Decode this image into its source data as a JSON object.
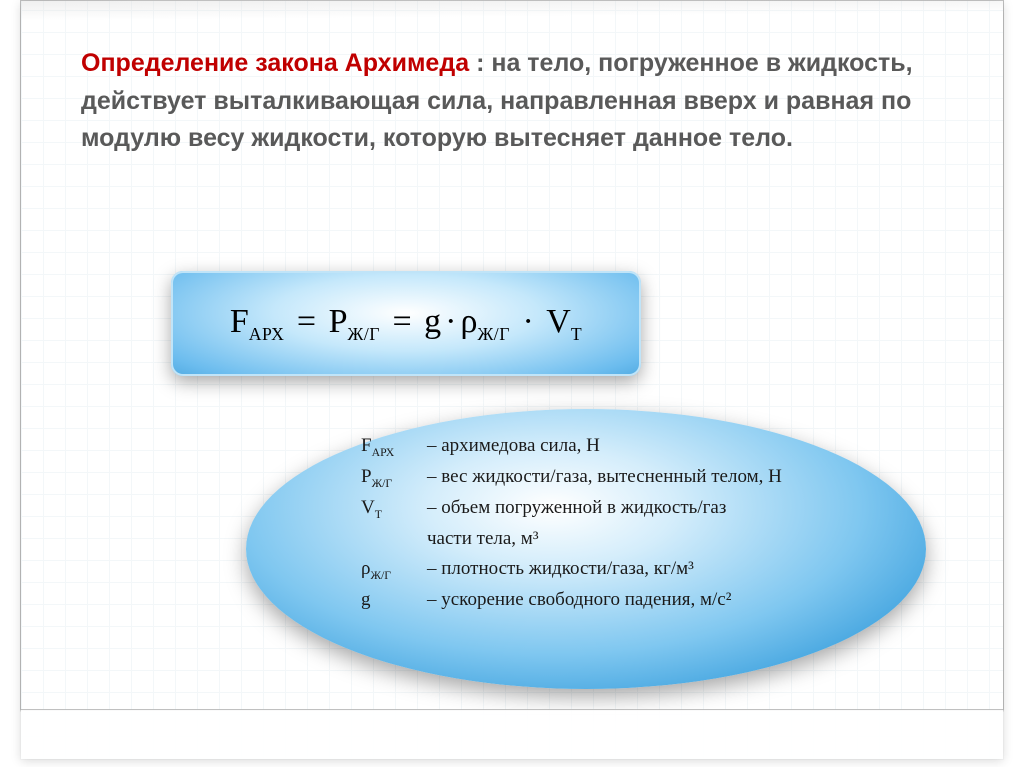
{
  "heading": {
    "term": "Определение закона Архимеда",
    "rest": " : на тело, погруженное в жидкость, действует выталкивающая сила, направленная вверх и равная по модулю весу жидкости, которую вытесняет данное тело.",
    "term_color": "#c00000",
    "rest_color": "#595959",
    "fontsize": 25
  },
  "formula": {
    "lhs_base": "F",
    "lhs_sub": "АРХ",
    "mid_base": "P",
    "mid_sub": "Ж/Г",
    "rhs_g": "g",
    "rhs_rho": "ρ",
    "rhs_rho_sub": "Ж/Г",
    "rhs_V": "V",
    "rhs_V_sub": "Т",
    "fontsize": 34,
    "box_bg_inner": "#ffffff",
    "box_bg_outer": "#4da8e0",
    "box_border_radius": 12
  },
  "legend": {
    "ellipse_bg_inner": "#ffffff",
    "ellipse_bg_outer": "#46a6e0",
    "fontsize": 19,
    "items": [
      {
        "sym_base": "F",
        "sym_sub": "АРХ",
        "sep": "–",
        "desc": "архимедова сила, Н"
      },
      {
        "sym_base": "P",
        "sym_sub": "Ж/Г",
        "sep": "–",
        "desc": "вес жидкости/газа, вытесненный телом, Н"
      },
      {
        "sym_base": "V",
        "sym_sub": "Т",
        "sep": "–",
        "desc": "объем погруженной в жидкость/газ"
      },
      {
        "sym_base": "",
        "sym_sub": "",
        "sep": "",
        "desc": "части тела, м³"
      },
      {
        "sym_base": "ρ",
        "sym_sub": "Ж/Г",
        "sep": "–",
        "desc": "плотность жидкости/газа, кг/м³"
      },
      {
        "sym_base": "g",
        "sym_sub": "",
        "sep": "–",
        "desc": "ускорение свободного падения, м/с²"
      }
    ]
  },
  "page": {
    "grid_color": "#e8f0f5",
    "background": "#ffffff"
  }
}
